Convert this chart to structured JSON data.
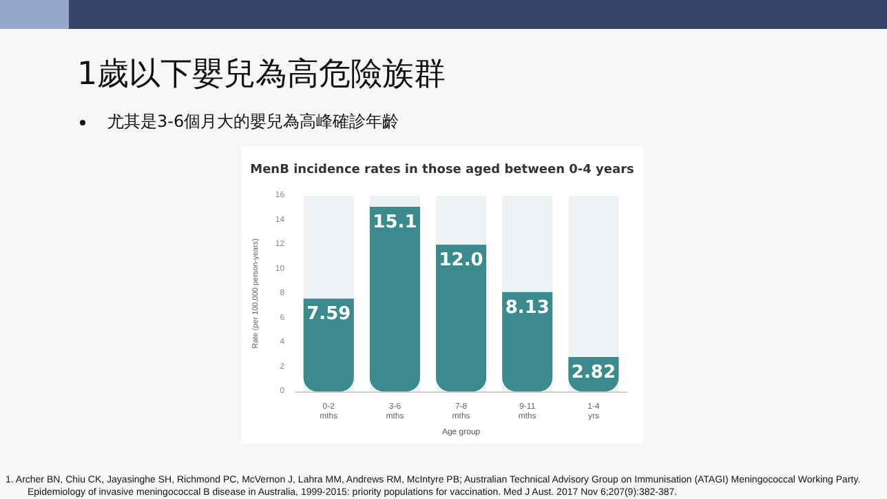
{
  "chart_data": {
    "type": "bar",
    "title": "MenB incidence rates in those aged between 0-4 years",
    "categories": [
      "0-2\nmths",
      "3-6\nmths",
      "7-8\nmths",
      "9-11\nmths",
      "1-4\nyrs"
    ],
    "values": [
      7.59,
      15.1,
      12.0,
      8.13,
      2.82
    ],
    "color": "#3b8a8d",
    "data_labels": true,
    "value_labels": [
      "7.59",
      "15.1",
      "12.0",
      "8.13",
      "2.82"
    ],
    "xlabel": "Age group",
    "ylabel": "Rate (per 100,000 person-years)",
    "ylim": [
      0,
      16
    ],
    "yticks": [
      0,
      2,
      4,
      6,
      8,
      10,
      12,
      14,
      16
    ],
    "grid": false,
    "annotations": [
      "1歲以下嬰兒為高危險族群",
      "尤其是3-6個月大的嬰兒為高峰確診年齡",
      "1. Archer BN, Chiu CK, Jayasinghe SH, Richmond PC, McVernon J, Lahra MM, Andrews RM, McIntyre PB; Australian Technical Advisory Group on Immunisation (ATAGI) Meningococcal Working Party. Epidemiology of invasive meningococcal B disease in Australia, 1999-2015: priority populations for vaccination. Med J Aust. 2017 Nov 6;207(9):382-387."
    ]
  }
}
